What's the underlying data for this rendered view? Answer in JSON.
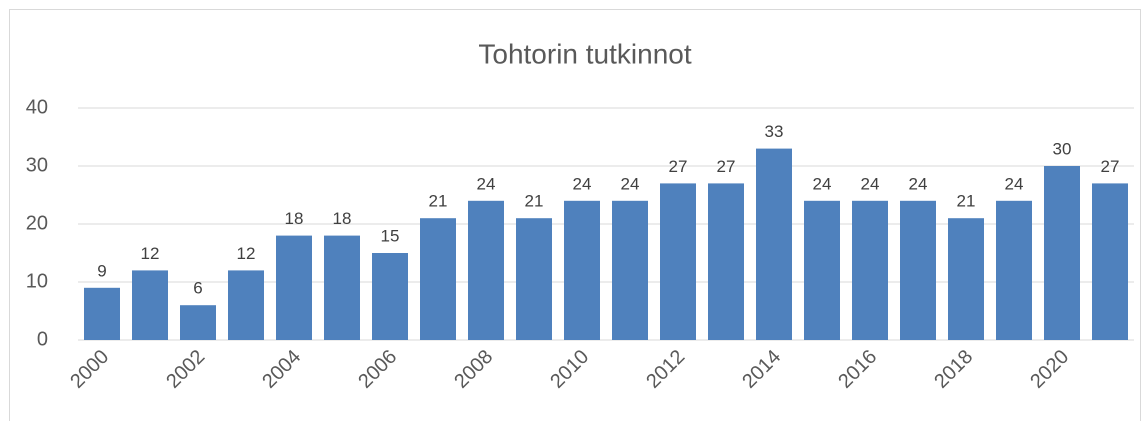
{
  "chart_data": {
    "type": "bar",
    "title": "Tohtorin tutkinnot",
    "categories": [
      "2000",
      null,
      "2002",
      null,
      "2004",
      null,
      "2006",
      null,
      "2008",
      null,
      "2010",
      null,
      "2012",
      null,
      "2014",
      null,
      "2016",
      null,
      "2018",
      null,
      "2020",
      null
    ],
    "values": [
      9,
      12,
      6,
      12,
      18,
      18,
      15,
      21,
      24,
      21,
      24,
      24,
      27,
      27,
      33,
      24,
      24,
      24,
      21,
      24,
      30,
      27
    ],
    "color": "#4f81bd",
    "ylim": [
      0,
      40
    ],
    "yticks": [
      0,
      10,
      20,
      30,
      40
    ],
    "grid": true
  }
}
